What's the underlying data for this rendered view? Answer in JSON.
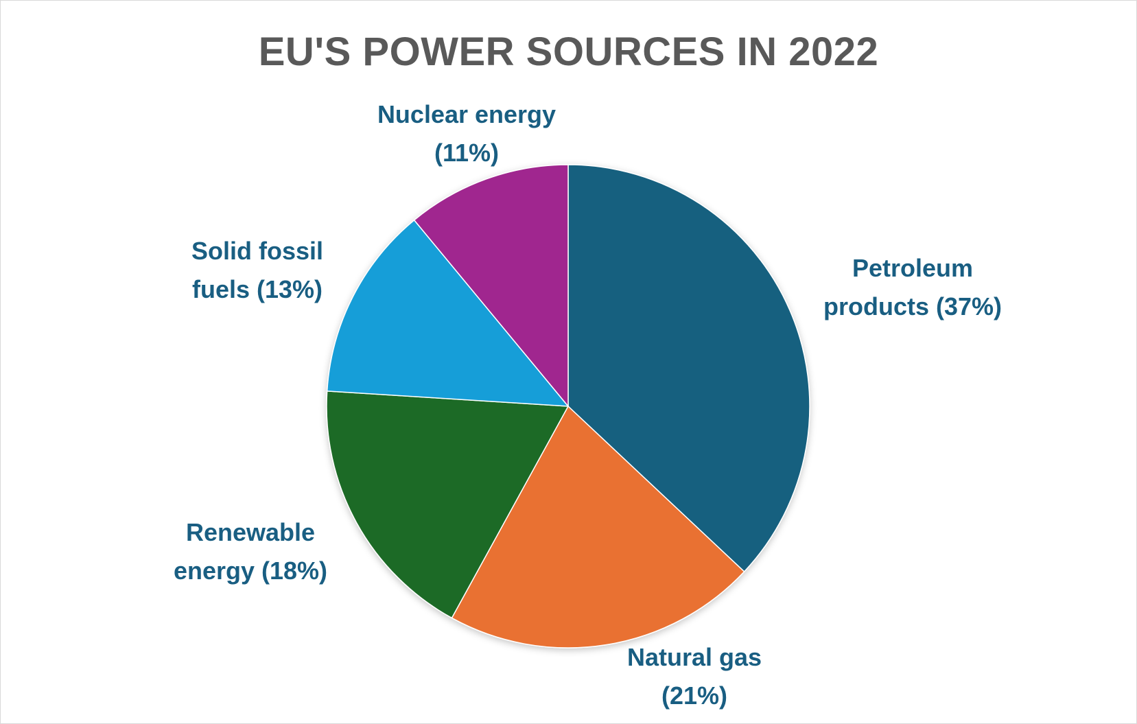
{
  "chart_data": {
    "type": "pie",
    "title": "EU'S POWER SOURCES IN 2022",
    "slices": [
      {
        "label": "Petroleum products",
        "value": 37,
        "color": "#17607f",
        "label_line1": "Petroleum",
        "label_line2": "products (37%)"
      },
      {
        "label": "Natural gas",
        "value": 21,
        "color": "#e97132",
        "label_line1": "Natural gas",
        "label_line2": "(21%)"
      },
      {
        "label": "Renewable energy",
        "value": 18,
        "color": "#1c6b25",
        "label_line1": "Renewable",
        "label_line2": "energy (18%)"
      },
      {
        "label": "Solid fossil fuels",
        "value": 13,
        "color": "#139ed8",
        "label_line1": "Solid fossil",
        "label_line2": "fuels (13%)"
      },
      {
        "label": "Nuclear energy",
        "value": 11,
        "color": "#a0288f",
        "label_line1": "Nuclear energy",
        "label_line2": "(11%)"
      }
    ],
    "start_angle_deg": 0,
    "direction": "clockwise",
    "legend": "none",
    "data_labels": "outside with category name and percentage",
    "label_color": "#195e82",
    "title_color": "#595959"
  }
}
